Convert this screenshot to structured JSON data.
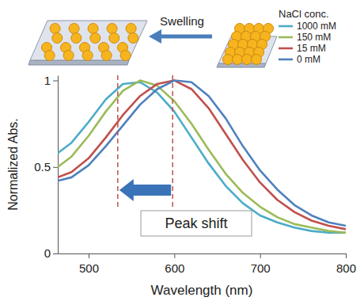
{
  "chart_data": {
    "type": "line",
    "x_label": "Wavelength (nm)",
    "y_label": "Normalized Abs.",
    "x": [
      464,
      480,
      500,
      520,
      540,
      560,
      580,
      600,
      620,
      640,
      660,
      680,
      700,
      720,
      740,
      760,
      780,
      800
    ],
    "series": [
      {
        "name": "1000 mM",
        "color": "#4bacc6",
        "values": [
          0.58,
          0.64,
          0.76,
          0.89,
          0.98,
          0.99,
          0.93,
          0.82,
          0.67,
          0.52,
          0.39,
          0.29,
          0.22,
          0.18,
          0.15,
          0.13,
          0.12,
          0.12
        ]
      },
      {
        "name": "150 mM",
        "color": "#9bbb59",
        "values": [
          0.5,
          0.56,
          0.68,
          0.82,
          0.94,
          1.0,
          0.97,
          0.88,
          0.75,
          0.6,
          0.46,
          0.35,
          0.27,
          0.21,
          0.17,
          0.15,
          0.13,
          0.12
        ]
      },
      {
        "name": "15 mM",
        "color": "#c0504d",
        "values": [
          0.44,
          0.47,
          0.55,
          0.67,
          0.8,
          0.91,
          0.98,
          1.0,
          0.95,
          0.84,
          0.69,
          0.54,
          0.41,
          0.31,
          0.24,
          0.19,
          0.16,
          0.14
        ]
      },
      {
        "name": "0 mM",
        "color": "#4f81bd",
        "values": [
          0.42,
          0.44,
          0.51,
          0.62,
          0.74,
          0.86,
          0.95,
          1.0,
          0.99,
          0.91,
          0.78,
          0.62,
          0.48,
          0.37,
          0.28,
          0.22,
          0.18,
          0.16
        ]
      }
    ],
    "xlim": [
      464,
      800
    ],
    "ylim": [
      0,
      1.03
    ],
    "xticks": [
      500,
      600,
      700,
      800
    ],
    "yticks": [
      0,
      0.5,
      1
    ],
    "legend_title": "NaCl conc.",
    "legend": "top-right",
    "annotations": [
      "Swelling",
      "Peak shift"
    ],
    "reference_lines": [
      534,
      598
    ]
  }
}
